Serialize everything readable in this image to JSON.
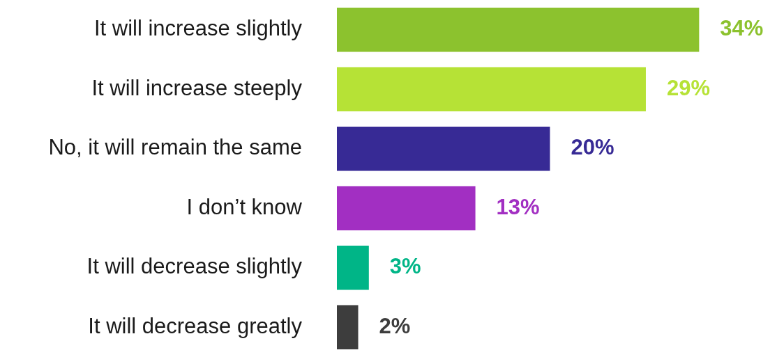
{
  "chart_data": {
    "type": "bar",
    "orientation": "horizontal",
    "tick_labels": "y",
    "value_labels": [
      "34%",
      "29%",
      "20%",
      "13%",
      "3%",
      "2%"
    ],
    "categories": [
      "It will increase slightly",
      "It will increase steeply",
      "No, it will remain the same",
      "I don’t know",
      "It will decrease slightly",
      "It will decrease greatly"
    ],
    "values": [
      34,
      29,
      20,
      13,
      3,
      2
    ],
    "colors": [
      "#8cc22e",
      "#b6e236",
      "#372a95",
      "#a22fc2",
      "#00b587",
      "#3d3d3d"
    ]
  }
}
